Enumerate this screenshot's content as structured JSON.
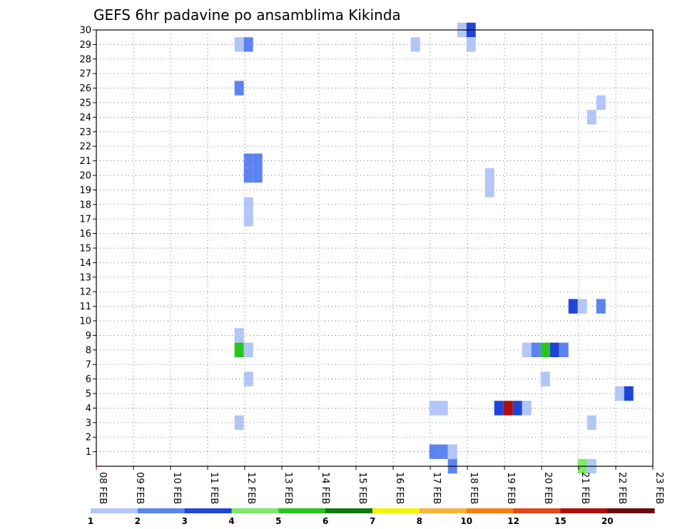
{
  "chart_data": {
    "type": "heatmap",
    "title": "GEFS 6hr padavine po ansamblima Kikinda",
    "x_ticks": [
      "08 FEB",
      "09 FEB",
      "10 FEB",
      "11 FEB",
      "12 FEB",
      "13 FEB",
      "14 FEB",
      "15 FEB",
      "16 FEB",
      "17 FEB",
      "18 FEB",
      "19 FEB",
      "20 FEB",
      "21 FEB",
      "22 FEB",
      "23 FEB"
    ],
    "y_ticks": [
      "1",
      "2",
      "3",
      "4",
      "5",
      "6",
      "7",
      "8",
      "9",
      "10",
      "11",
      "12",
      "13",
      "14",
      "15",
      "16",
      "17",
      "18",
      "19",
      "20",
      "21",
      "22",
      "23",
      "24",
      "25",
      "26",
      "27",
      "28",
      "29",
      "30"
    ],
    "x_range": [
      "08 FEB",
      "23 FEB"
    ],
    "y_range": [
      0,
      30
    ],
    "grid": true,
    "colorbar": {
      "labels": [
        "1",
        "2",
        "3",
        "4",
        "5",
        "6",
        "7",
        "8",
        "10",
        "12",
        "15",
        "20"
      ],
      "colors": [
        "#b3c6f7",
        "#5b84f0",
        "#1f45d8",
        "#80e86a",
        "#27c41e",
        "#0c7a0c",
        "#f5f500",
        "#f8b43c",
        "#f57f10",
        "#e3461a",
        "#b20d0d",
        "#6a0a0a"
      ]
    },
    "cells": [
      {
        "day": 11.85,
        "member": 29,
        "color": "#b3c6f7"
      },
      {
        "day": 12.1,
        "member": 29,
        "color": "#5b84f0"
      },
      {
        "day": 16.6,
        "member": 29,
        "color": "#b3c6f7"
      },
      {
        "day": 17.85,
        "member": 30,
        "color": "#b3c6f7"
      },
      {
        "day": 18.1,
        "member": 30,
        "color": "#1f45d8"
      },
      {
        "day": 18.1,
        "member": 29,
        "color": "#b3c6f7"
      },
      {
        "day": 11.85,
        "member": 26,
        "color": "#5b84f0"
      },
      {
        "day": 21.6,
        "member": 25,
        "color": "#b3c6f7"
      },
      {
        "day": 21.35,
        "member": 24,
        "color": "#b3c6f7"
      },
      {
        "day": 12.1,
        "member": 21,
        "color": "#5b84f0"
      },
      {
        "day": 12.35,
        "member": 21,
        "color": "#5b84f0"
      },
      {
        "day": 12.1,
        "member": 20,
        "color": "#5b84f0"
      },
      {
        "day": 12.35,
        "member": 20,
        "color": "#5b84f0"
      },
      {
        "day": 18.6,
        "member": 20,
        "color": "#b3c6f7"
      },
      {
        "day": 18.6,
        "member": 19,
        "color": "#b3c6f7"
      },
      {
        "day": 12.1,
        "member": 18,
        "color": "#b3c6f7"
      },
      {
        "day": 12.1,
        "member": 17,
        "color": "#b3c6f7"
      },
      {
        "day": 20.85,
        "member": 11,
        "color": "#1f45d8"
      },
      {
        "day": 21.1,
        "member": 11,
        "color": "#b3c6f7"
      },
      {
        "day": 21.6,
        "member": 11,
        "color": "#5b84f0"
      },
      {
        "day": 11.85,
        "member": 9,
        "color": "#b3c6f7"
      },
      {
        "day": 11.85,
        "member": 8,
        "color": "#27c41e"
      },
      {
        "day": 12.1,
        "member": 8,
        "color": "#b3c6f7"
      },
      {
        "day": 19.6,
        "member": 8,
        "color": "#b3c6f7"
      },
      {
        "day": 19.85,
        "member": 8,
        "color": "#5b84f0"
      },
      {
        "day": 20.1,
        "member": 8,
        "color": "#27c41e"
      },
      {
        "day": 20.35,
        "member": 8,
        "color": "#1f45d8"
      },
      {
        "day": 20.6,
        "member": 8,
        "color": "#5b84f0"
      },
      {
        "day": 12.1,
        "member": 6,
        "color": "#b3c6f7"
      },
      {
        "day": 20.1,
        "member": 6,
        "color": "#b3c6f7"
      },
      {
        "day": 22.1,
        "member": 5,
        "color": "#b3c6f7"
      },
      {
        "day": 22.35,
        "member": 5,
        "color": "#1f45d8"
      },
      {
        "day": 17.1,
        "member": 4,
        "color": "#b3c6f7"
      },
      {
        "day": 17.35,
        "member": 4,
        "color": "#b3c6f7"
      },
      {
        "day": 18.85,
        "member": 4,
        "color": "#1f45d8"
      },
      {
        "day": 19.1,
        "member": 4,
        "color": "#b20d0d"
      },
      {
        "day": 19.35,
        "member": 4,
        "color": "#1f45d8"
      },
      {
        "day": 19.6,
        "member": 4,
        "color": "#b3c6f7"
      },
      {
        "day": 11.85,
        "member": 3,
        "color": "#b3c6f7"
      },
      {
        "day": 21.35,
        "member": 3,
        "color": "#b3c6f7"
      },
      {
        "day": 17.1,
        "member": 1,
        "color": "#5b84f0"
      },
      {
        "day": 17.35,
        "member": 1,
        "color": "#5b84f0"
      },
      {
        "day": 17.6,
        "member": 1,
        "color": "#b3c6f7"
      },
      {
        "day": 17.6,
        "member": 0,
        "color": "#5b84f0"
      },
      {
        "day": 21.1,
        "member": 0,
        "color": "#80e86a"
      },
      {
        "day": 21.35,
        "member": 0,
        "color": "#b3c6f7"
      }
    ]
  }
}
